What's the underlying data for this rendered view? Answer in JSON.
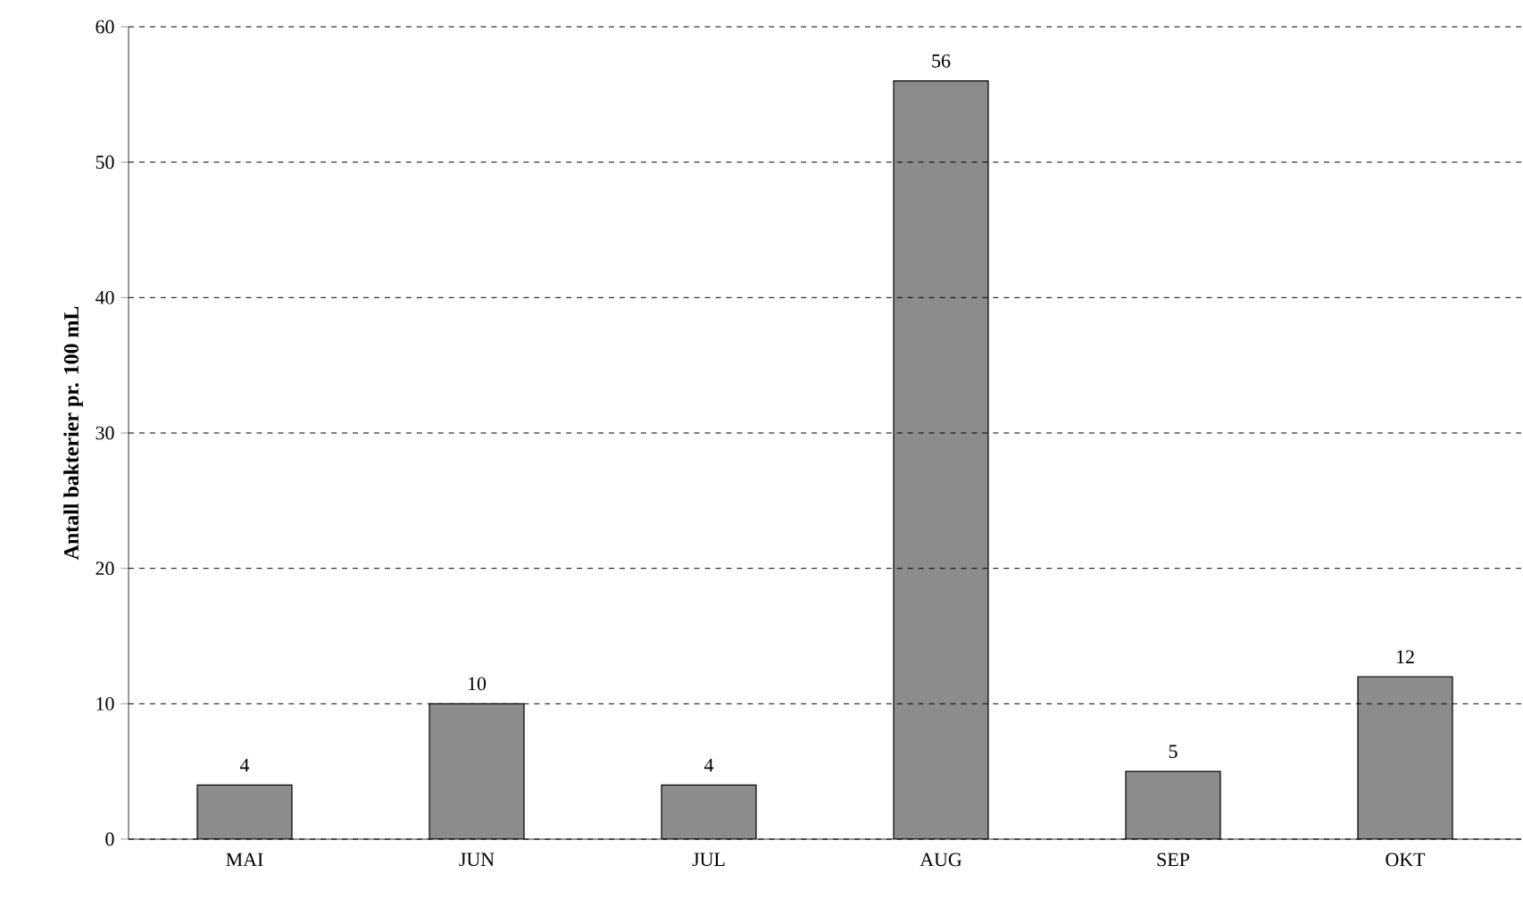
{
  "chart_data": {
    "type": "bar",
    "ylabel": "Antall bakterier pr. 100 mL",
    "categories": [
      "MAI",
      "JUN",
      "JUL",
      "AUG",
      "SEP",
      "OKT"
    ],
    "values": [
      4,
      10,
      4,
      56,
      5,
      12
    ],
    "color": "#8c8c8c",
    "ylim": [
      0,
      60
    ],
    "yticks": [
      0,
      10,
      20,
      30,
      40,
      50,
      60
    ],
    "grid": "y",
    "data_labels": true
  }
}
